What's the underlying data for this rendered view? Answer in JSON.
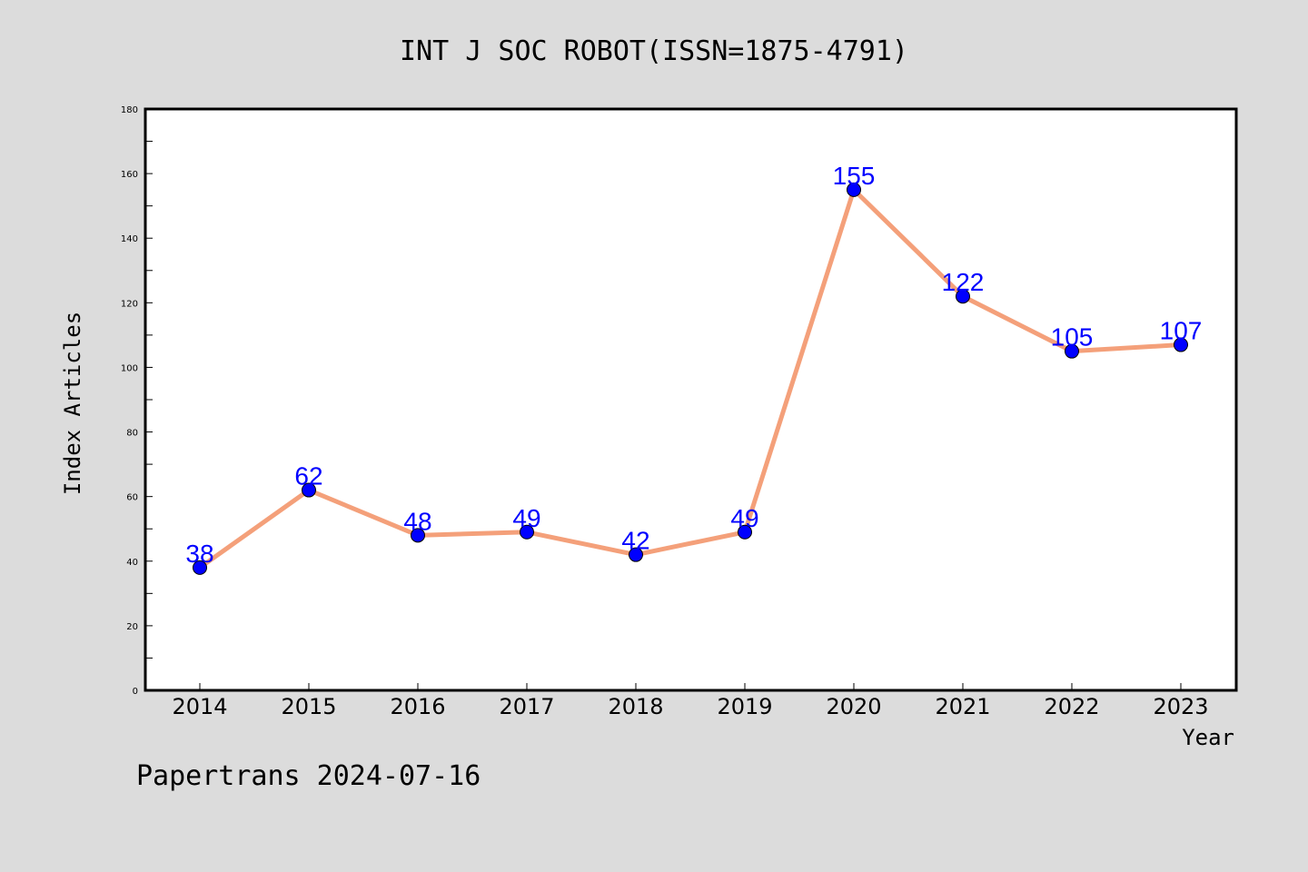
{
  "footer": "Papertrans 2024-07-16",
  "chart_data": {
    "type": "line",
    "title": "INT J SOC ROBOT(ISSN=1875-4791)",
    "xlabel": "Year",
    "ylabel": "Index Articles",
    "categories": [
      "2014",
      "2015",
      "2016",
      "2017",
      "2018",
      "2019",
      "2020",
      "2021",
      "2022",
      "2023"
    ],
    "values": [
      38,
      62,
      48,
      49,
      42,
      49,
      155,
      122,
      105,
      107
    ],
    "data_labels": [
      "38",
      "62",
      "48",
      "49",
      "42",
      "49",
      "155",
      "122",
      "105",
      "107"
    ],
    "ylim": [
      0,
      180
    ],
    "yticks": [
      0,
      20,
      40,
      60,
      80,
      100,
      120,
      140,
      160,
      180
    ],
    "grid": false,
    "legend": "none",
    "colors": {
      "line": "#f4a07a",
      "marker": "#0000ff",
      "label": "#0000ff",
      "background": "#dcdcdc",
      "plot_background": "#ffffff"
    }
  }
}
